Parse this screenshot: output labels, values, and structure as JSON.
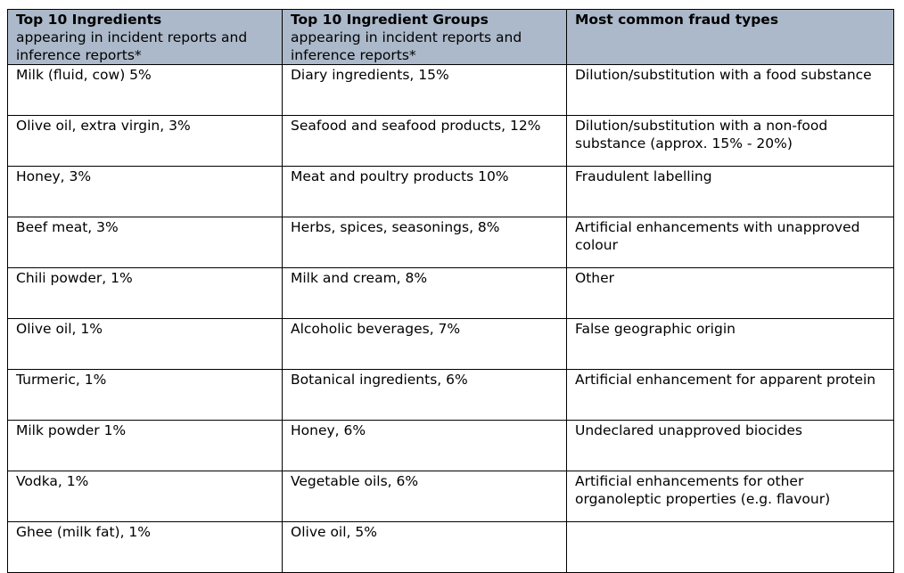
{
  "table": {
    "header": [
      {
        "title": "Top 10 Ingredients",
        "subtitle": "appearing in incident reports and inference reports*"
      },
      {
        "title": "Top 10 Ingredient Groups",
        "subtitle": "appearing in incident reports and inference reports*"
      },
      {
        "title": "Most common fraud types"
      }
    ],
    "rows": [
      [
        "Milk (fluid, cow) 5%",
        "Diary ingredients, 15%",
        "Dilution/substitution with a food substance"
      ],
      [
        "Olive oil, extra virgin, 3%",
        "Seafood and seafood products, 12%",
        "Dilution/substitution with a non-food substance (approx. 15% - 20%)"
      ],
      [
        "Honey, 3%",
        "Meat and poultry products 10%",
        "Fraudulent labelling"
      ],
      [
        "Beef meat, 3%",
        "Herbs, spices, seasonings, 8%",
        "Artificial enhancements with unapproved colour"
      ],
      [
        "Chili powder, 1%",
        "Milk and cream, 8%",
        "Other"
      ],
      [
        "Olive oil, 1%",
        "Alcoholic beverages, 7%",
        "False geographic origin"
      ],
      [
        "Turmeric, 1%",
        "Botanical ingredients, 6%",
        "Artificial enhancement for apparent protein"
      ],
      [
        "Milk powder 1%",
        "Honey, 6%",
        "Undeclared unapproved biocides"
      ],
      [
        "Vodka, 1%",
        "Vegetable oils, 6%",
        "Artificial enhancements for other organoleptic properties (e.g. flavour)"
      ],
      [
        "Ghee (milk fat), 1%",
        "Olive oil, 5%"
      ]
    ]
  }
}
